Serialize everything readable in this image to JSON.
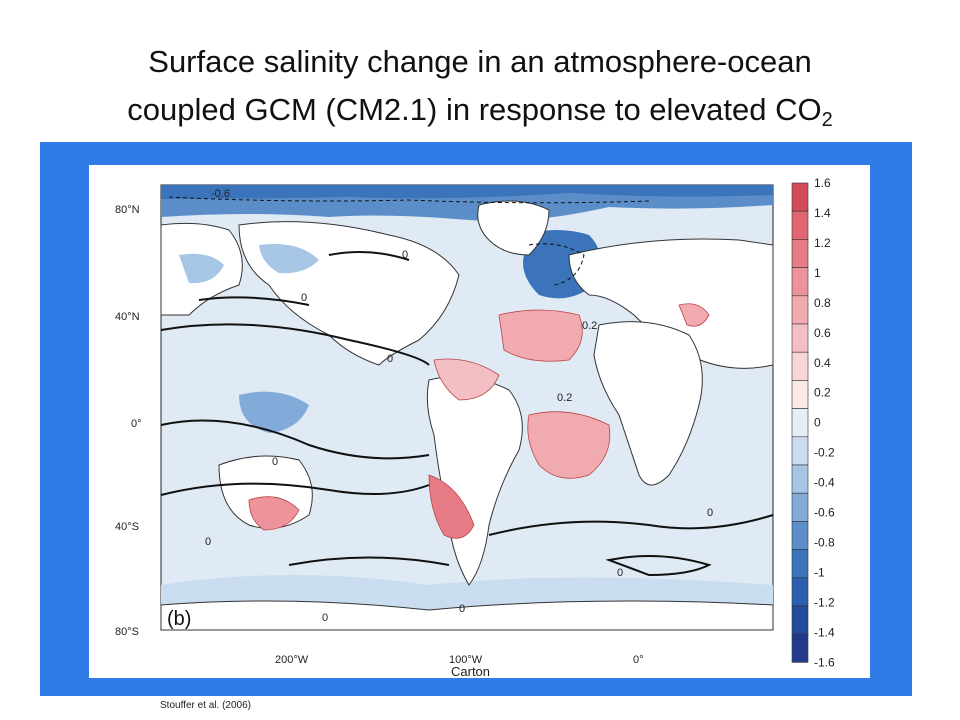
{
  "title": {
    "line1": "Surface salinity change in an atmosphere-ocean",
    "line2": "coupled GCM (CM2.1) in response to elevated CO",
    "subscript": "2"
  },
  "map": {
    "panel_label": "(b)",
    "lat_labels": [
      "80°N",
      "40°N",
      "0°",
      "40°S",
      "80°S"
    ],
    "lon_labels": [
      "200°W",
      "100°W",
      "0°"
    ],
    "contour_labels": [
      "-0.6",
      "0.2",
      "0.2",
      "0",
      "0",
      "0",
      "0",
      "0",
      "0",
      "0",
      "0",
      "0"
    ],
    "colorbar_labels": [
      "1.6",
      "1.4",
      "1.2",
      "1",
      "0.8",
      "0.6",
      "0.4",
      "0.2",
      "0",
      "-0.2",
      "-0.4",
      "-0.6",
      "-0.8",
      "-1",
      "-1.2",
      "-1.4",
      "-1.6"
    ],
    "colorbar_colors": [
      "#d64b5a",
      "#e06672",
      "#e77c86",
      "#ec939b",
      "#f0aab0",
      "#f4bfc4",
      "#f8d5d8",
      "#fce9ea",
      "#e6eef7",
      "#c9dcf0",
      "#a7c6e6",
      "#82abd9",
      "#5b8ec9",
      "#3b74bb",
      "#2a5fae",
      "#214b9c",
      "#233a8c"
    ]
  },
  "watermark": "Carton",
  "credit": "Stouffer et al. (2006)"
}
